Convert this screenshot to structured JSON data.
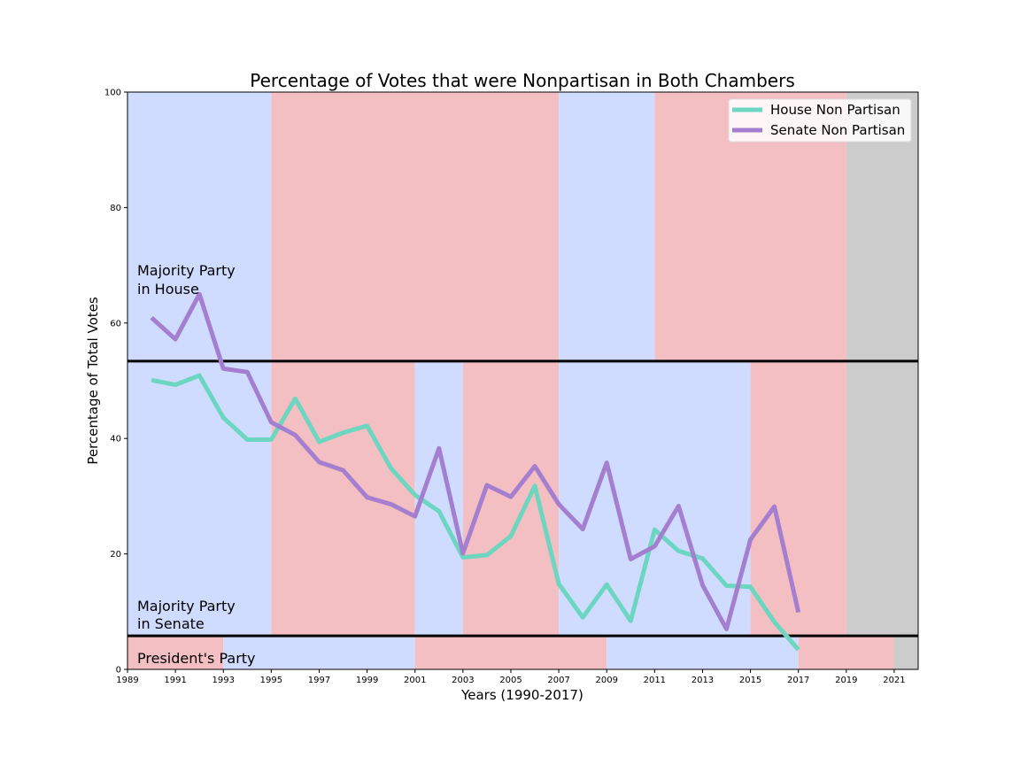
{
  "chart_data": {
    "type": "line",
    "title": "Percentage of Votes that were Nonpartisan in Both Chambers",
    "xlabel": "Years (1990-2017)",
    "ylabel": "Percentage of Total Votes",
    "xlim": [
      1989,
      2022
    ],
    "ylim": [
      0,
      100
    ],
    "x_ticks": [
      1989,
      1991,
      1993,
      1995,
      1997,
      1999,
      2001,
      2003,
      2005,
      2007,
      2009,
      2011,
      2013,
      2015,
      2017,
      2019,
      2021
    ],
    "y_ticks": [
      0,
      20,
      40,
      60,
      80,
      100
    ],
    "legend_position": "top-right",
    "series": [
      {
        "name": "House Non Partisan",
        "color": "#6dd6c0",
        "x": [
          1990,
          1991,
          1992,
          1993,
          1994,
          1995,
          1996,
          1997,
          1998,
          1999,
          2000,
          2001,
          2002,
          2003,
          2004,
          2005,
          2006,
          2007,
          2008,
          2009,
          2010,
          2011,
          2012,
          2013,
          2014,
          2015,
          2016,
          2017
        ],
        "values": [
          50.1,
          49.3,
          50.9,
          43.6,
          39.8,
          39.8,
          46.9,
          39.4,
          41.0,
          42.2,
          34.8,
          30.2,
          27.4,
          19.4,
          19.8,
          23.1,
          31.8,
          14.8,
          9.0,
          14.7,
          8.4,
          24.2,
          20.5,
          19.2,
          14.5,
          14.3,
          8.2,
          3.4
        ]
      },
      {
        "name": "Senate Non Partisan",
        "color": "#a57fcf",
        "x": [
          1990,
          1991,
          1992,
          1993,
          1994,
          1995,
          1996,
          1997,
          1998,
          1999,
          2000,
          2001,
          2002,
          2003,
          2004,
          2005,
          2006,
          2007,
          2008,
          2009,
          2010,
          2011,
          2012,
          2013,
          2014,
          2015,
          2016,
          2017
        ],
        "values": [
          60.9,
          57.2,
          65.0,
          52.1,
          51.5,
          42.8,
          40.6,
          35.9,
          34.5,
          29.8,
          28.6,
          26.5,
          38.3,
          20.1,
          31.9,
          29.9,
          35.2,
          28.6,
          24.3,
          35.8,
          19.1,
          21.3,
          28.3,
          14.6,
          7.0,
          22.5,
          28.2,
          9.9
        ]
      }
    ],
    "divider_levels": [
      53.4,
      5.8
    ],
    "colors": {
      "democrat": "#cfdcff",
      "republican": "#f4bfc2",
      "future": "#cccccc"
    },
    "party_bands": {
      "house": [
        {
          "start": 1989,
          "end": 1995,
          "party": "democrat"
        },
        {
          "start": 1995,
          "end": 2007,
          "party": "republican"
        },
        {
          "start": 2007,
          "end": 2011,
          "party": "democrat"
        },
        {
          "start": 2011,
          "end": 2019,
          "party": "republican"
        },
        {
          "start": 2019,
          "end": 2022,
          "party": "future"
        }
      ],
      "senate": [
        {
          "start": 1989,
          "end": 1995,
          "party": "democrat"
        },
        {
          "start": 1995,
          "end": 2001,
          "party": "republican"
        },
        {
          "start": 2001,
          "end": 2003,
          "party": "democrat"
        },
        {
          "start": 2003,
          "end": 2007,
          "party": "republican"
        },
        {
          "start": 2007,
          "end": 2015,
          "party": "democrat"
        },
        {
          "start": 2015,
          "end": 2019,
          "party": "republican"
        },
        {
          "start": 2019,
          "end": 2022,
          "party": "future"
        }
      ],
      "president": [
        {
          "start": 1989,
          "end": 1993,
          "party": "republican"
        },
        {
          "start": 1993,
          "end": 2001,
          "party": "democrat"
        },
        {
          "start": 2001,
          "end": 2009,
          "party": "republican"
        },
        {
          "start": 2009,
          "end": 2017,
          "party": "democrat"
        },
        {
          "start": 2017,
          "end": 2021,
          "party": "republican"
        },
        {
          "start": 2021,
          "end": 2022,
          "party": "future"
        }
      ]
    },
    "section_labels": {
      "house_line1": "Majority Party",
      "house_line2": "in House",
      "senate_line1": "Majority Party",
      "senate_line2": "in Senate",
      "president": "President's Party"
    }
  }
}
